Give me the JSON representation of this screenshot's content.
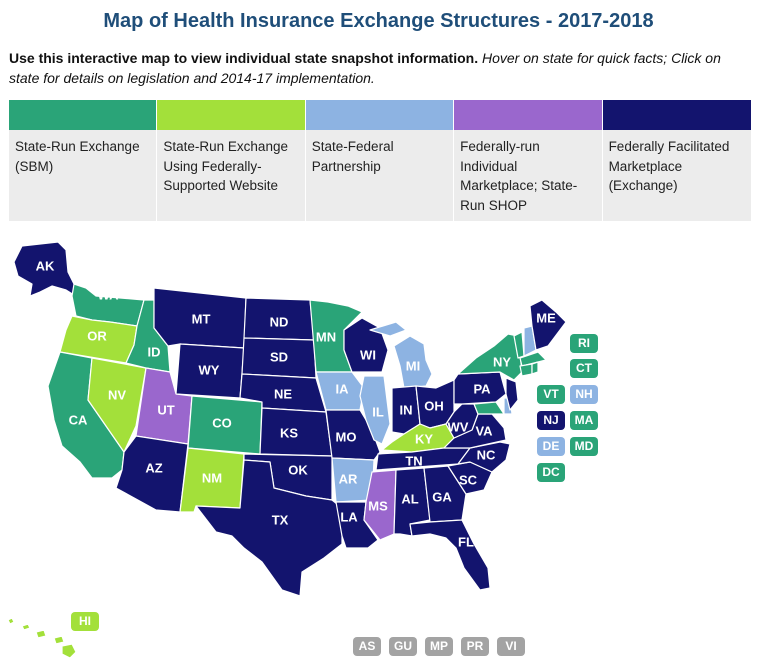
{
  "title": "Map of Health Insurance Exchange Structures - 2017-2018",
  "intro": {
    "bold": "Use this interactive map to view individual state snapshot information.",
    "italic": "Hover on state for quick facts; Click on state for details on legislation and 2014-17 implementation."
  },
  "colors": {
    "sbm": "#2aa478",
    "sbm_fed": "#a3e03a",
    "partnership": "#8db3e2",
    "shop": "#9a67cd",
    "ffm": "#13146e",
    "territory": "#a3a3a3"
  },
  "legend": [
    {
      "key": "sbm",
      "label": "State-Run Exchange (SBM)"
    },
    {
      "key": "sbm_fed",
      "label": "State-Run Exchange Using Federally-Supported Website"
    },
    {
      "key": "partnership",
      "label": "State-Federal Partnership"
    },
    {
      "key": "shop",
      "label": "Federally-run Individual Marketplace; State-Run SHOP"
    },
    {
      "key": "ffm",
      "label": "Federally Facilitated Marketplace (Exchange)"
    }
  ],
  "states": {
    "AK": "AK",
    "WA": "WA",
    "OR": "OR",
    "CA": "CA",
    "NV": "NV",
    "ID": "ID",
    "MT": "MT",
    "WY": "WY",
    "UT": "UT",
    "CO": "CO",
    "AZ": "AZ",
    "NM": "NM",
    "ND": "ND",
    "SD": "SD",
    "NE": "NE",
    "KS": "KS",
    "OK": "OK",
    "TX": "TX",
    "MN": "MN",
    "IA": "IA",
    "MO": "MO",
    "AR": "AR",
    "LA": "LA",
    "WI": "WI",
    "IL": "IL",
    "MI": "MI",
    "IN": "IN",
    "OH": "OH",
    "KY": "KY",
    "TN": "TN",
    "MS": "MS",
    "AL": "AL",
    "GA": "GA",
    "FL": "FL",
    "SC": "SC",
    "NC": "NC",
    "VA": "VA",
    "WV": "WV",
    "PA": "PA",
    "NY": "NY",
    "ME": "ME",
    "HI": "HI"
  },
  "badges": {
    "RI": "RI",
    "CT": "CT",
    "VT": "VT",
    "NH": "NH",
    "NJ": "NJ",
    "MA": "MA",
    "DE": "DE",
    "MD": "MD",
    "DC": "DC"
  },
  "territories": [
    "AS",
    "GU",
    "MP",
    "PR",
    "VI"
  ]
}
